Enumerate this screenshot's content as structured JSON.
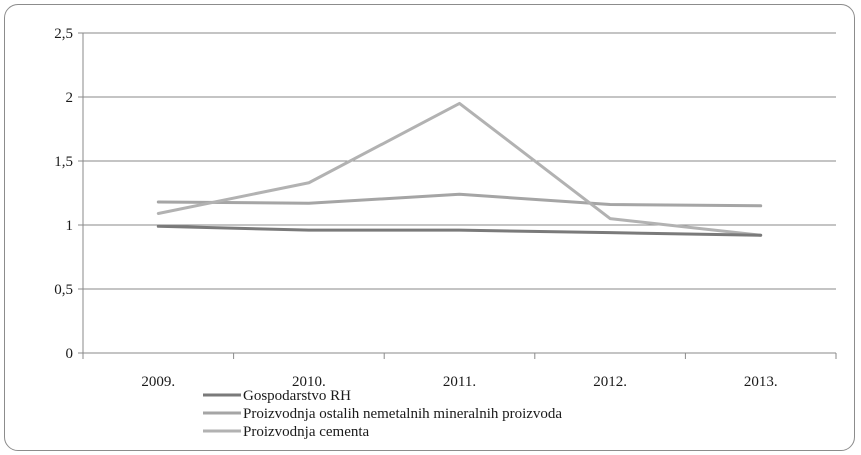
{
  "chart_data": {
    "type": "line",
    "title": "",
    "xlabel": "",
    "ylabel": "",
    "categories": [
      "2009.",
      "2010.",
      "2011.",
      "2012.",
      "2013."
    ],
    "ylim": [
      0,
      2.5
    ],
    "yticks": [
      {
        "value": 0,
        "label": "0"
      },
      {
        "value": 0.5,
        "label": "0,5"
      },
      {
        "value": 1,
        "label": "1"
      },
      {
        "value": 1.5,
        "label": "1,5"
      },
      {
        "value": 2,
        "label": "2"
      },
      {
        "value": 2.5,
        "label": "2,5"
      }
    ],
    "grid": true,
    "legend_position": "bottom",
    "series": [
      {
        "name": "Gospodarstvo RH",
        "values": [
          0.99,
          0.96,
          0.96,
          0.94,
          0.92
        ],
        "color": "#7a7a7a"
      },
      {
        "name": "Proizvodnja ostalih nemetalnih mineralnih proizvoda",
        "values": [
          1.18,
          1.17,
          1.24,
          1.16,
          1.15
        ],
        "color": "#a5a5a5"
      },
      {
        "name": "Proizvodnja cementa",
        "values": [
          1.09,
          1.33,
          1.95,
          1.05,
          0.92
        ],
        "color": "#b2b2b2"
      }
    ]
  }
}
